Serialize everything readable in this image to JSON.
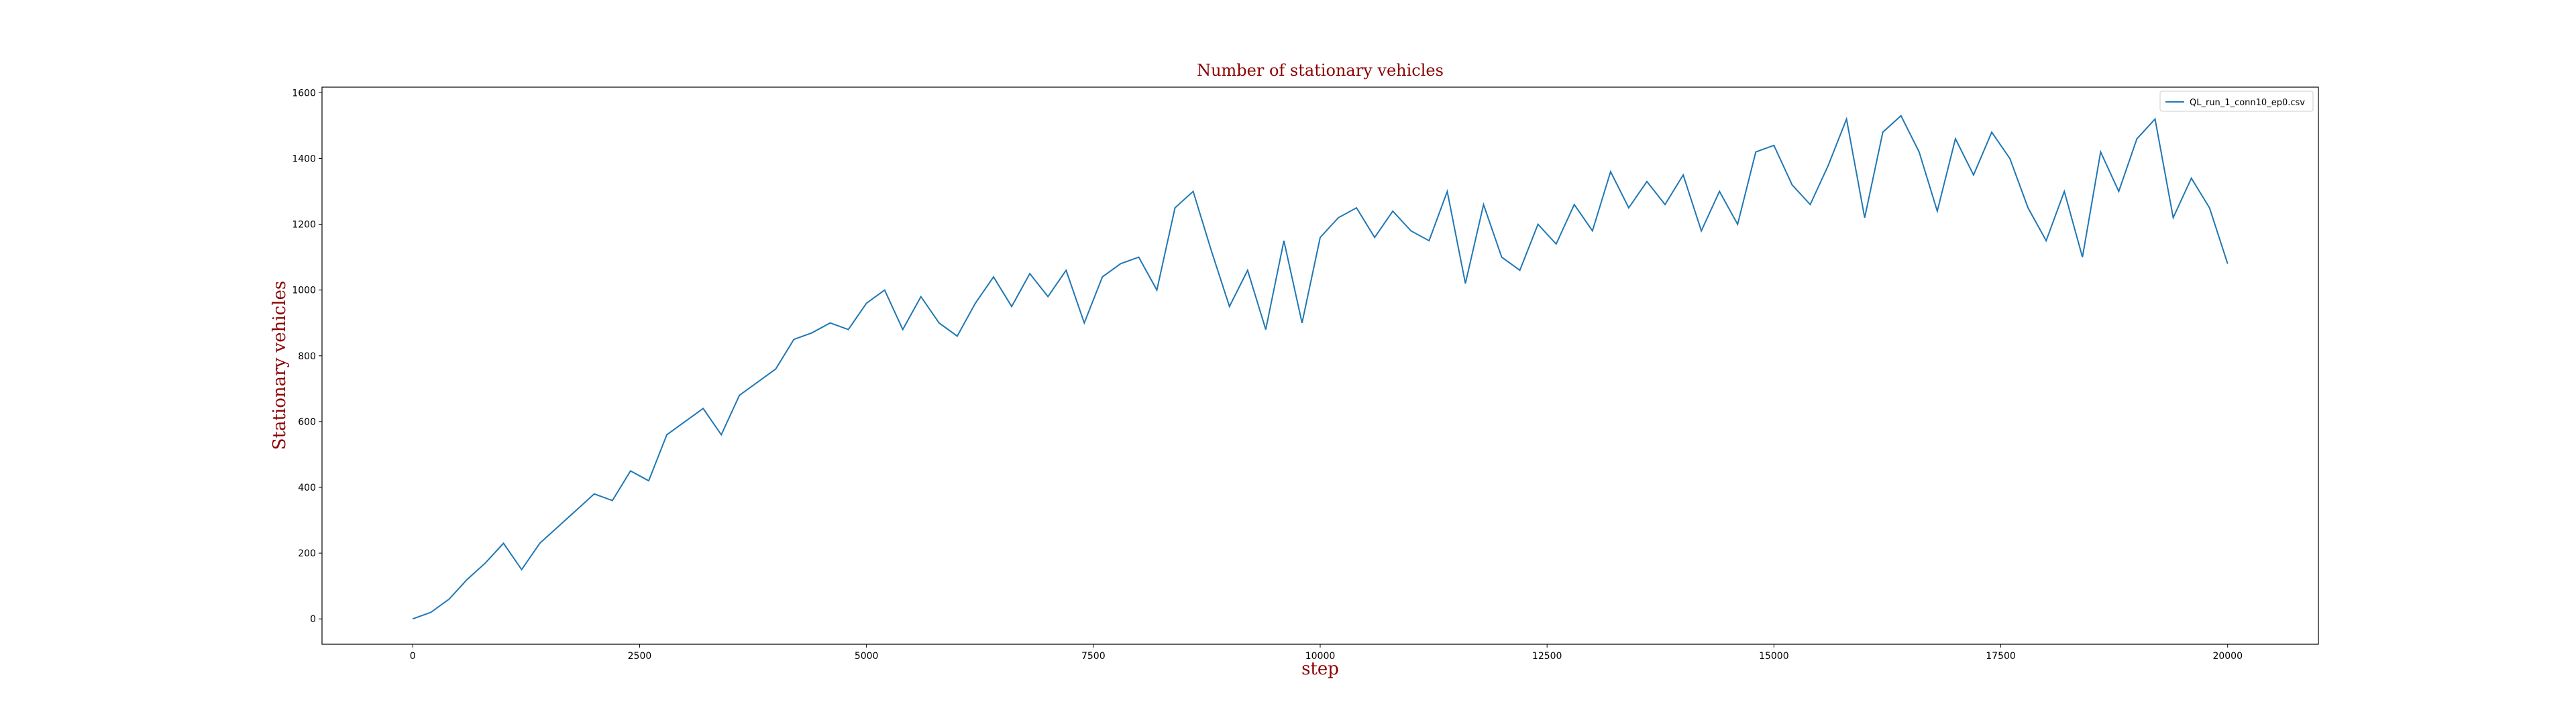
{
  "chart_data": {
    "type": "line",
    "title": "Number of stationary vehicles",
    "x_label": "step",
    "y_label": "Stationary vehicles",
    "x": [
      0,
      200,
      400,
      600,
      800,
      1000,
      1200,
      1400,
      1600,
      1800,
      2000,
      2200,
      2400,
      2600,
      2800,
      3000,
      3200,
      3400,
      3600,
      3800,
      4000,
      4200,
      4400,
      4600,
      4800,
      5000,
      5200,
      5400,
      5600,
      5800,
      6000,
      6200,
      6400,
      6600,
      6800,
      7000,
      7200,
      7400,
      7600,
      7800,
      8000,
      8200,
      8400,
      8600,
      8800,
      9000,
      9200,
      9400,
      9600,
      9800,
      10000,
      10200,
      10400,
      10600,
      10800,
      11000,
      11200,
      11400,
      11600,
      11800,
      12000,
      12200,
      12400,
      12600,
      12800,
      13000,
      13200,
      13400,
      13600,
      13800,
      14000,
      14200,
      14400,
      14600,
      14800,
      15000,
      15200,
      15400,
      15600,
      15800,
      16000,
      16200,
      16400,
      16600,
      16800,
      17000,
      17200,
      17400,
      17600,
      17800,
      18000,
      18200,
      18400,
      18600,
      18800,
      19000,
      19200,
      19400,
      19600,
      19800,
      20000
    ],
    "series": [
      {
        "name": "QL_run_1_conn10_ep0.csv",
        "color": "#1f77b4",
        "values": [
          0,
          20,
          60,
          120,
          170,
          230,
          150,
          230,
          280,
          330,
          380,
          360,
          450,
          420,
          560,
          600,
          640,
          560,
          680,
          720,
          760,
          850,
          870,
          900,
          880,
          960,
          1000,
          880,
          980,
          900,
          860,
          960,
          1040,
          950,
          1050,
          980,
          1060,
          900,
          1040,
          1080,
          1100,
          1000,
          1250,
          1300,
          1120,
          950,
          1060,
          880,
          1150,
          900,
          1160,
          1220,
          1250,
          1160,
          1240,
          1180,
          1150,
          1300,
          1020,
          1260,
          1100,
          1060,
          1200,
          1140,
          1260,
          1180,
          1360,
          1250,
          1330,
          1260,
          1350,
          1180,
          1300,
          1200,
          1420,
          1440,
          1320,
          1260,
          1380,
          1520,
          1220,
          1480,
          1530,
          1420,
          1240,
          1460,
          1350,
          1480,
          1400,
          1250,
          1150,
          1300,
          1100,
          1420,
          1300,
          1460,
          1520,
          1220,
          1340,
          1250,
          1080
        ]
      }
    ],
    "xlim": [
      -1000,
      21000
    ],
    "ylim": [
      -77,
      1617
    ],
    "xticks": [
      0,
      2500,
      5000,
      7500,
      10000,
      12500,
      15000,
      17500,
      20000
    ],
    "yticks": [
      0,
      200,
      400,
      600,
      800,
      1000,
      1200,
      1400,
      1600
    ],
    "legend": "upper right"
  }
}
